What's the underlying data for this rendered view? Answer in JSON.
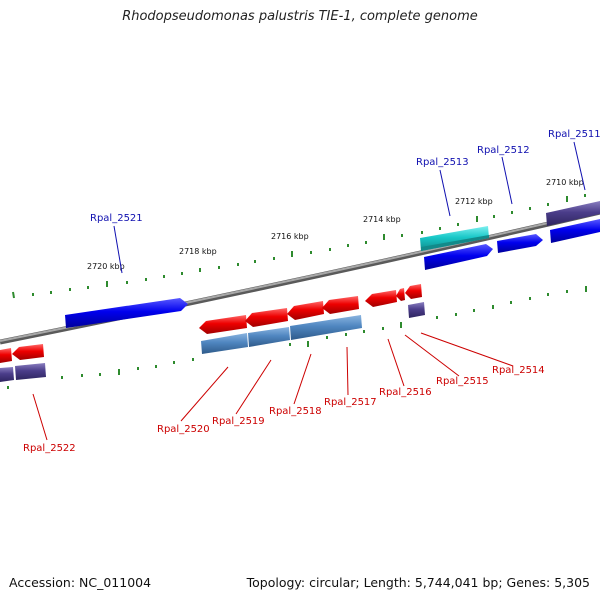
{
  "title": "Rhodopseudomonas palustris TIE-1, complete genome",
  "accession": "Accession: NC_011004",
  "topology": "Topology: circular; Length: 5,744,041 bp; Genes: 5,305",
  "colors": {
    "forward_cds": "#0000ee",
    "reverse_cds": "#ee0000",
    "forward_rna": "#19c8c8",
    "gene_bar": "#4b3d8a",
    "reverse_gene_bar": "#4f86c0",
    "backbone": "#8a8a8a",
    "tick": "#2e8b2e",
    "label_forward": "#1010b0",
    "label_reverse": "#cc0000"
  },
  "scale_labels": [
    "2720 kbp",
    "2718 kbp",
    "2716 kbp",
    "2714 kbp",
    "2712 kbp",
    "2710 kbp"
  ],
  "genes": [
    {
      "label": "Rpal_2511",
      "strand": "forward"
    },
    {
      "label": "Rpal_2512",
      "strand": "forward"
    },
    {
      "label": "Rpal_2513",
      "strand": "forward"
    },
    {
      "label": "Rpal_2514",
      "strand": "reverse"
    },
    {
      "label": "Rpal_2515",
      "strand": "reverse"
    },
    {
      "label": "Rpal_2516",
      "strand": "reverse"
    },
    {
      "label": "Rpal_2517",
      "strand": "reverse"
    },
    {
      "label": "Rpal_2518",
      "strand": "reverse"
    },
    {
      "label": "Rpal_2519",
      "strand": "reverse"
    },
    {
      "label": "Rpal_2520",
      "strand": "reverse"
    },
    {
      "label": "Rpal_2521",
      "strand": "forward"
    },
    {
      "label": "Rpal_2522",
      "strand": "reverse"
    }
  ]
}
